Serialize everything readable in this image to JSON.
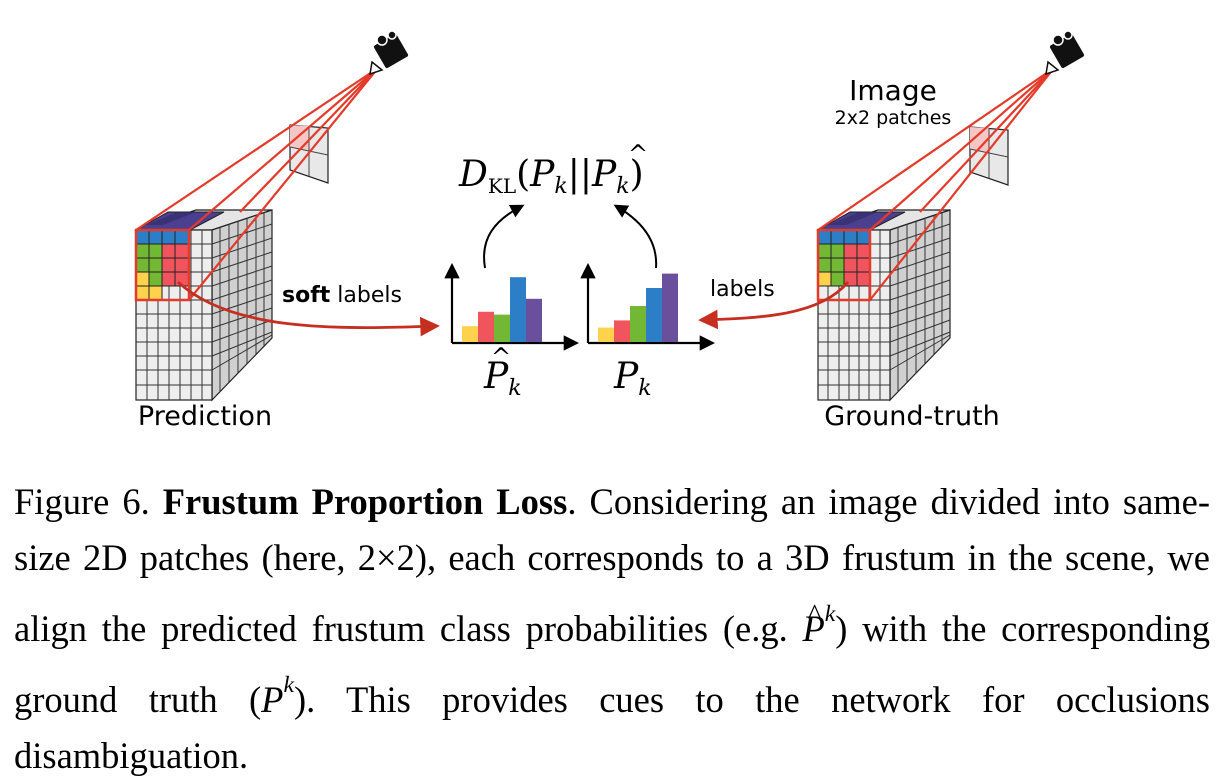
{
  "figure": {
    "label_prediction": "Prediction",
    "label_ground_truth": "Ground-truth",
    "label_image": "Image",
    "label_patches": "2x2 patches",
    "label_soft_bold": "soft",
    "label_soft_rest": " labels",
    "label_labels": "labels",
    "kl_D": "D",
    "kl_sub": "KL",
    "kl_open": "(",
    "kl_P": "P",
    "kl_k": "k",
    "kl_bars": "||",
    "kl_Phat": "P",
    "kl_k2": "k",
    "kl_close": ")",
    "hist_pred_P": "P",
    "hist_pred_k": "k",
    "hist_gt_P": "P",
    "hist_gt_k": "k",
    "hat": "^",
    "hist_pred_values": [
      0.22,
      0.42,
      0.38,
      0.9,
      0.6
    ],
    "hist_gt_values": [
      0.2,
      0.3,
      0.5,
      0.75,
      0.95
    ],
    "class_colors": [
      "#ffd24d",
      "#f0545c",
      "#72b834",
      "#2c7fc6",
      "#6a4f9c"
    ],
    "arrow_color": "#c62e1f",
    "frustum_color": "#e43a2a"
  },
  "caption": {
    "fig_label": "Figure 6.",
    "title": "Frustum Proportion Loss",
    "text_1": ". Considering an image divided into same-size 2D patches (here, 2×2), each corresponds to a 3D frustum in the scene, we align the predicted frustum class probabilities (e.g. ",
    "phat_P": "P",
    "phat_hat": "^",
    "phat_sup": "k",
    "text_2": ") with the corresponding ground truth (",
    "p_P": "P",
    "p_sup": "k",
    "text_3": "). This provides cues to the network for occlusions disambiguation."
  }
}
